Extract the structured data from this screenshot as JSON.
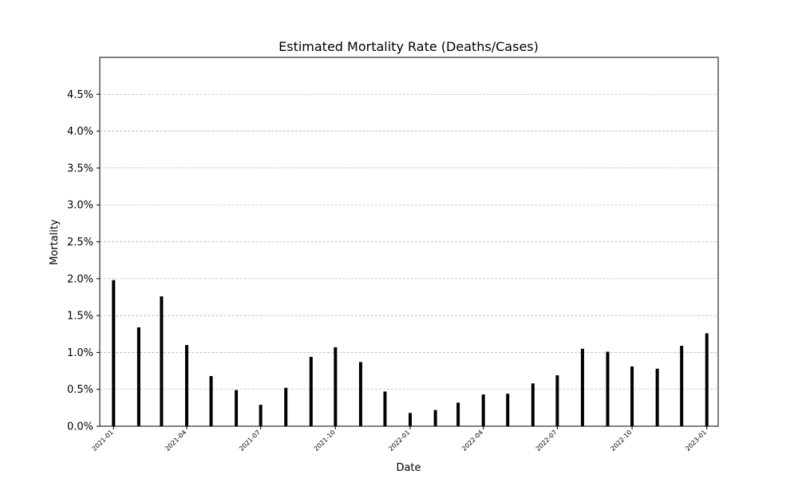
{
  "chart_data": {
    "type": "bar",
    "title": "Estimated Mortality Rate (Deaths/Cases)",
    "xlabel": "Date",
    "ylabel": "Mortality",
    "x": [
      "2021-01-01",
      "2021-02-01",
      "2021-03-01",
      "2021-04-01",
      "2021-05-01",
      "2021-06-01",
      "2021-07-01",
      "2021-08-01",
      "2021-09-01",
      "2021-10-01",
      "2021-11-01",
      "2021-12-01",
      "2022-01-01",
      "2022-02-01",
      "2022-03-01",
      "2022-04-01",
      "2022-05-01",
      "2022-06-01",
      "2022-07-01",
      "2022-08-01",
      "2022-09-01",
      "2022-10-01",
      "2022-11-01",
      "2022-12-01",
      "2023-01-01"
    ],
    "values": [
      1.98,
      1.34,
      1.76,
      1.1,
      0.68,
      0.49,
      0.29,
      0.52,
      0.94,
      1.07,
      0.87,
      0.47,
      0.18,
      0.22,
      0.32,
      0.43,
      0.44,
      0.58,
      0.69,
      1.05,
      1.01,
      0.81,
      0.78,
      1.09,
      1.26
    ],
    "ylim": [
      0,
      5.0
    ],
    "y_ticks": [
      0,
      0.5,
      1.0,
      1.5,
      2.0,
      2.5,
      3.0,
      3.5,
      4.0,
      4.5
    ],
    "y_tick_labels": [
      "0.0%",
      "0.5%",
      "1.0%",
      "1.5%",
      "2.0%",
      "2.5%",
      "3.0%",
      "3.5%",
      "4.0%",
      "4.5%"
    ],
    "x_ticks": [
      "2021-01-01",
      "2021-04-01",
      "2021-07-01",
      "2021-10-01",
      "2022-01-01",
      "2022-04-01",
      "2022-07-01",
      "2022-10-01",
      "2023-01-01"
    ],
    "x_tick_labels": [
      "2021-01",
      "2021-04",
      "2021-07",
      "2021-10",
      "2022-01",
      "2022-04",
      "2022-07",
      "2022-10",
      "2023-01"
    ],
    "xlim": [
      "2020-12-15",
      "2023-01-15"
    ],
    "grid": "y",
    "bar_color": "#000000",
    "grid_color": "#b0b0b0"
  }
}
